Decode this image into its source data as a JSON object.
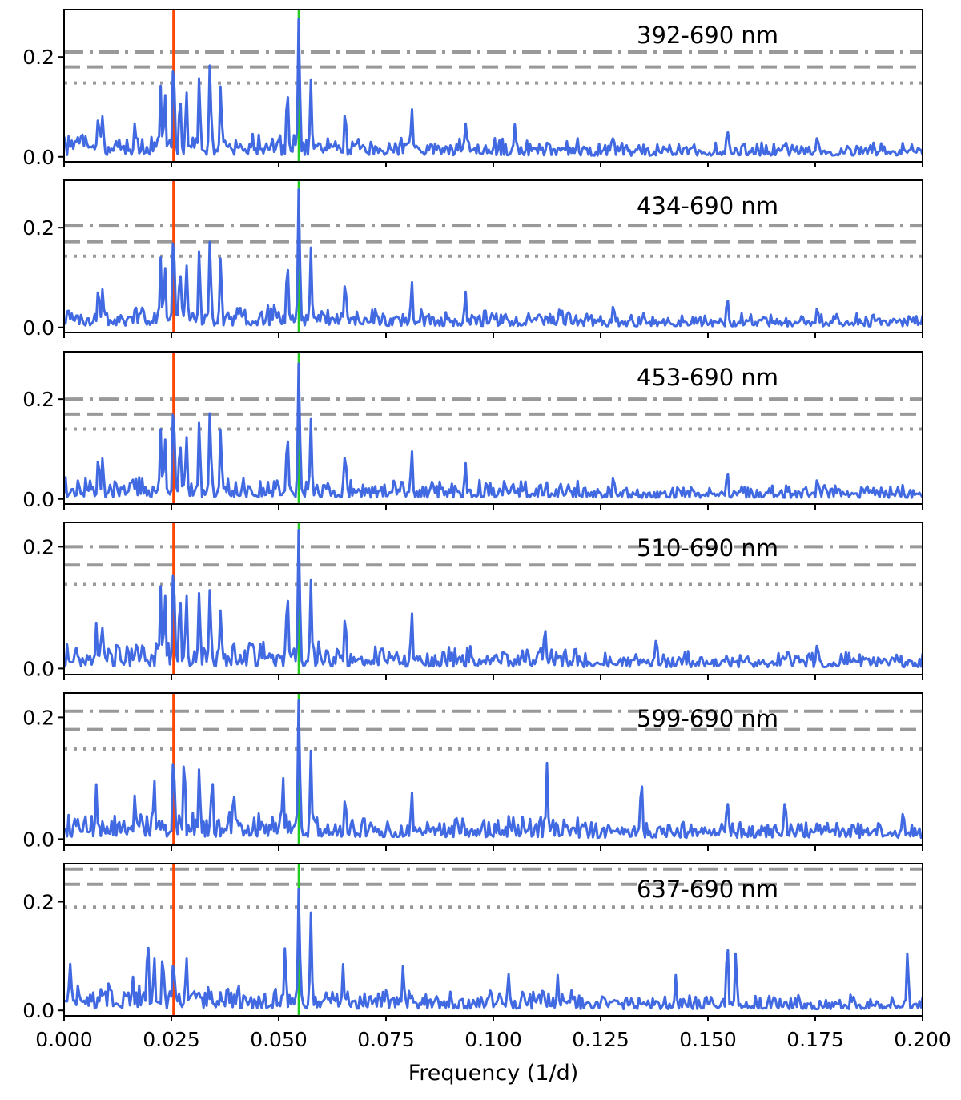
{
  "chart_data": {
    "type": "line",
    "xlabel": "Frequency (1/d)",
    "ylabel": "",
    "xlim": [
      0.0,
      0.2
    ],
    "x_tick_values": [
      0.0,
      0.025,
      0.05,
      0.075,
      0.1,
      0.125,
      0.15,
      0.175,
      0.2
    ],
    "x_tick_labels": [
      "0.000",
      "0.025",
      "0.050",
      "0.075",
      "0.100",
      "0.125",
      "0.150",
      "0.175",
      "0.200"
    ],
    "vertical_lines": [
      {
        "x": 0.0255,
        "color": "#ff4500"
      },
      {
        "x": 0.0547,
        "color": "#22cc22"
      }
    ],
    "line_color": "#4169e1",
    "threshold_color": "#999999",
    "panels": [
      {
        "label": "392-690 nm",
        "ylim": [
          -0.01,
          0.295
        ],
        "y_tick_values": [
          0.0,
          0.2
        ],
        "y_tick_labels": [
          "0.0",
          "0.2"
        ],
        "thresholds": {
          "dashdot": 0.21,
          "dashed": 0.18,
          "dotted": 0.148
        },
        "peaks": [
          {
            "x": 0.008,
            "y": 0.088
          },
          {
            "x": 0.009,
            "y": 0.085
          },
          {
            "x": 0.0165,
            "y": 0.07
          },
          {
            "x": 0.0225,
            "y": 0.142
          },
          {
            "x": 0.0235,
            "y": 0.13
          },
          {
            "x": 0.0255,
            "y": 0.21
          },
          {
            "x": 0.027,
            "y": 0.13
          },
          {
            "x": 0.0285,
            "y": 0.135
          },
          {
            "x": 0.0315,
            "y": 0.165
          },
          {
            "x": 0.034,
            "y": 0.192
          },
          {
            "x": 0.0365,
            "y": 0.148
          },
          {
            "x": 0.052,
            "y": 0.145
          },
          {
            "x": 0.0547,
            "y": 0.285
          },
          {
            "x": 0.0575,
            "y": 0.155
          },
          {
            "x": 0.0655,
            "y": 0.1
          },
          {
            "x": 0.081,
            "y": 0.1
          },
          {
            "x": 0.0935,
            "y": 0.07
          },
          {
            "x": 0.105,
            "y": 0.065
          },
          {
            "x": 0.128,
            "y": 0.045
          },
          {
            "x": 0.1545,
            "y": 0.06
          },
          {
            "x": 0.1755,
            "y": 0.045
          }
        ]
      },
      {
        "label": "434-690 nm",
        "ylim": [
          -0.01,
          0.295
        ],
        "y_tick_values": [
          0.0,
          0.2
        ],
        "y_tick_labels": [
          "0.0",
          "0.2"
        ],
        "thresholds": {
          "dashdot": 0.205,
          "dashed": 0.172,
          "dotted": 0.143
        },
        "peaks": [
          {
            "x": 0.008,
            "y": 0.085
          },
          {
            "x": 0.009,
            "y": 0.08
          },
          {
            "x": 0.0225,
            "y": 0.14
          },
          {
            "x": 0.0235,
            "y": 0.125
          },
          {
            "x": 0.0255,
            "y": 0.205
          },
          {
            "x": 0.027,
            "y": 0.125
          },
          {
            "x": 0.0285,
            "y": 0.13
          },
          {
            "x": 0.0315,
            "y": 0.16
          },
          {
            "x": 0.034,
            "y": 0.18
          },
          {
            "x": 0.0365,
            "y": 0.145
          },
          {
            "x": 0.052,
            "y": 0.14
          },
          {
            "x": 0.0547,
            "y": 0.285
          },
          {
            "x": 0.0575,
            "y": 0.16
          },
          {
            "x": 0.0655,
            "y": 0.1
          },
          {
            "x": 0.081,
            "y": 0.095
          },
          {
            "x": 0.0935,
            "y": 0.075
          },
          {
            "x": 0.128,
            "y": 0.05
          },
          {
            "x": 0.1545,
            "y": 0.065
          },
          {
            "x": 0.1755,
            "y": 0.045
          }
        ]
      },
      {
        "label": "453-690 nm",
        "ylim": [
          -0.01,
          0.295
        ],
        "y_tick_values": [
          0.0,
          0.2
        ],
        "y_tick_labels": [
          "0.0",
          "0.2"
        ],
        "thresholds": {
          "dashdot": 0.2,
          "dashed": 0.17,
          "dotted": 0.14
        },
        "peaks": [
          {
            "x": 0.008,
            "y": 0.09
          },
          {
            "x": 0.009,
            "y": 0.085
          },
          {
            "x": 0.0225,
            "y": 0.14
          },
          {
            "x": 0.0235,
            "y": 0.125
          },
          {
            "x": 0.0255,
            "y": 0.205
          },
          {
            "x": 0.027,
            "y": 0.125
          },
          {
            "x": 0.0285,
            "y": 0.13
          },
          {
            "x": 0.0315,
            "y": 0.16
          },
          {
            "x": 0.034,
            "y": 0.18
          },
          {
            "x": 0.0365,
            "y": 0.145
          },
          {
            "x": 0.052,
            "y": 0.14
          },
          {
            "x": 0.0547,
            "y": 0.28
          },
          {
            "x": 0.0575,
            "y": 0.16
          },
          {
            "x": 0.0655,
            "y": 0.1
          },
          {
            "x": 0.081,
            "y": 0.1
          },
          {
            "x": 0.0935,
            "y": 0.075
          },
          {
            "x": 0.128,
            "y": 0.05
          },
          {
            "x": 0.1545,
            "y": 0.06
          },
          {
            "x": 0.1755,
            "y": 0.045
          }
        ]
      },
      {
        "label": "510-690 nm",
        "ylim": [
          -0.01,
          0.24
        ],
        "y_tick_values": [
          0.0,
          0.2
        ],
        "y_tick_labels": [
          "0.0",
          "0.2"
        ],
        "thresholds": {
          "dashdot": 0.2,
          "dashed": 0.17,
          "dotted": 0.138
        },
        "peaks": [
          {
            "x": 0.0075,
            "y": 0.075
          },
          {
            "x": 0.009,
            "y": 0.07
          },
          {
            "x": 0.0225,
            "y": 0.135
          },
          {
            "x": 0.0235,
            "y": 0.125
          },
          {
            "x": 0.0255,
            "y": 0.185
          },
          {
            "x": 0.027,
            "y": 0.13
          },
          {
            "x": 0.0285,
            "y": 0.125
          },
          {
            "x": 0.0315,
            "y": 0.13
          },
          {
            "x": 0.034,
            "y": 0.135
          },
          {
            "x": 0.0365,
            "y": 0.1
          },
          {
            "x": 0.052,
            "y": 0.135
          },
          {
            "x": 0.0547,
            "y": 0.235
          },
          {
            "x": 0.0575,
            "y": 0.145
          },
          {
            "x": 0.0655,
            "y": 0.095
          },
          {
            "x": 0.081,
            "y": 0.095
          },
          {
            "x": 0.112,
            "y": 0.075
          },
          {
            "x": 0.138,
            "y": 0.055
          },
          {
            "x": 0.1755,
            "y": 0.045
          }
        ]
      },
      {
        "label": "599-690 nm",
        "ylim": [
          -0.01,
          0.24
        ],
        "y_tick_values": [
          0.0,
          0.2
        ],
        "y_tick_labels": [
          "0.0",
          "0.2"
        ],
        "thresholds": {
          "dashdot": 0.21,
          "dashed": 0.18,
          "dotted": 0.148
        },
        "peaks": [
          {
            "x": 0.0075,
            "y": 0.09
          },
          {
            "x": 0.0165,
            "y": 0.075
          },
          {
            "x": 0.021,
            "y": 0.1
          },
          {
            "x": 0.0255,
            "y": 0.15
          },
          {
            "x": 0.028,
            "y": 0.145
          },
          {
            "x": 0.0315,
            "y": 0.12
          },
          {
            "x": 0.0345,
            "y": 0.11
          },
          {
            "x": 0.0395,
            "y": 0.085
          },
          {
            "x": 0.051,
            "y": 0.105
          },
          {
            "x": 0.0547,
            "y": 0.235
          },
          {
            "x": 0.0575,
            "y": 0.145
          },
          {
            "x": 0.0655,
            "y": 0.075
          },
          {
            "x": 0.081,
            "y": 0.08
          },
          {
            "x": 0.1125,
            "y": 0.125
          },
          {
            "x": 0.1345,
            "y": 0.105
          },
          {
            "x": 0.1545,
            "y": 0.07
          },
          {
            "x": 0.168,
            "y": 0.07
          },
          {
            "x": 0.1955,
            "y": 0.05
          }
        ]
      },
      {
        "label": "637-690 nm",
        "ylim": [
          -0.01,
          0.27
        ],
        "y_tick_values": [
          0.0,
          0.2
        ],
        "y_tick_labels": [
          "0.0",
          "0.2"
        ],
        "thresholds": {
          "dashdot": 0.26,
          "dashed": 0.232,
          "dotted": 0.19
        },
        "peaks": [
          {
            "x": 0.0015,
            "y": 0.09
          },
          {
            "x": 0.0105,
            "y": 0.06
          },
          {
            "x": 0.016,
            "y": 0.065
          },
          {
            "x": 0.0195,
            "y": 0.14
          },
          {
            "x": 0.021,
            "y": 0.1
          },
          {
            "x": 0.023,
            "y": 0.11
          },
          {
            "x": 0.0255,
            "y": 0.1
          },
          {
            "x": 0.0285,
            "y": 0.1
          },
          {
            "x": 0.0515,
            "y": 0.12
          },
          {
            "x": 0.0547,
            "y": 0.23
          },
          {
            "x": 0.0575,
            "y": 0.18
          },
          {
            "x": 0.065,
            "y": 0.085
          },
          {
            "x": 0.079,
            "y": 0.085
          },
          {
            "x": 0.1035,
            "y": 0.07
          },
          {
            "x": 0.115,
            "y": 0.065
          },
          {
            "x": 0.1425,
            "y": 0.065
          },
          {
            "x": 0.1545,
            "y": 0.135
          },
          {
            "x": 0.1565,
            "y": 0.11
          },
          {
            "x": 0.1965,
            "y": 0.11
          }
        ]
      }
    ]
  }
}
